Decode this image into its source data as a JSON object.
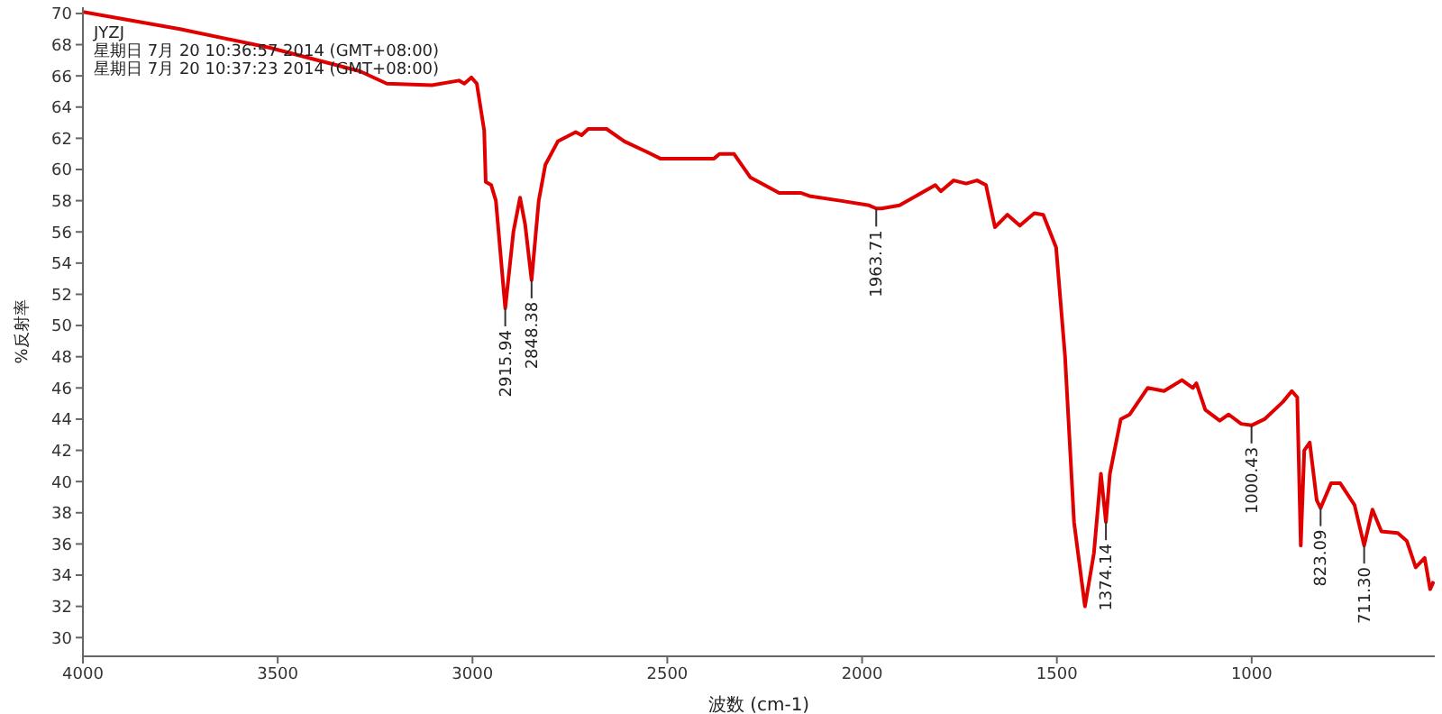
{
  "chart_data": {
    "type": "line",
    "xlabel": "波数 (cm-1)",
    "ylabel": "%反射率",
    "xlim": [
      4000,
      530
    ],
    "xticks": [
      4000,
      3500,
      3000,
      2500,
      2000,
      1500,
      1000
    ],
    "ylim": [
      28.8,
      70.4
    ],
    "yticks": [
      30,
      32,
      34,
      36,
      38,
      40,
      42,
      44,
      46,
      48,
      50,
      52,
      54,
      56,
      58,
      60,
      62,
      64,
      66,
      68,
      70
    ],
    "grid": false,
    "legend": false,
    "marker": "none",
    "line_style": "solid",
    "series": [
      {
        "color": "#e00000",
        "x": [
          4000,
          3751,
          3520,
          3289,
          3220,
          3104,
          3035,
          3021,
          3003,
          2989,
          2970,
          2966,
          2952,
          2940,
          2915.94,
          2895,
          2878,
          2865,
          2848.38,
          2830,
          2813,
          2781,
          2735,
          2720,
          2703,
          2656,
          2610,
          2550,
          2518,
          2426,
          2380,
          2366,
          2329,
          2287,
          2213,
          2158,
          2135,
          2056,
          1982,
          1963.71,
          1950,
          1904,
          1812,
          1798,
          1765,
          1733,
          1705,
          1682,
          1659,
          1627,
          1595,
          1558,
          1535,
          1502,
          1479,
          1456,
          1428,
          1405,
          1387,
          1374.14,
          1364,
          1336,
          1313,
          1267,
          1225,
          1179,
          1151,
          1142,
          1119,
          1082,
          1059,
          1027,
          1000.43,
          967,
          920,
          897,
          883,
          874,
          865,
          851,
          833,
          823.09,
          796,
          773,
          736,
          711.3,
          690,
          667,
          625,
          602,
          579,
          556,
          542,
          533
        ],
        "values": [
          70.1,
          69.0,
          67.8,
          66.3,
          65.5,
          65.4,
          65.7,
          65.5,
          65.9,
          65.5,
          62.5,
          59.2,
          59.0,
          58.0,
          51.1,
          56.0,
          58.2,
          56.5,
          52.9,
          58.0,
          60.3,
          61.8,
          62.4,
          62.2,
          62.6,
          62.6,
          61.8,
          61.1,
          60.7,
          60.7,
          60.7,
          61.0,
          61.0,
          59.5,
          58.5,
          58.5,
          58.3,
          58.0,
          57.7,
          57.5,
          57.5,
          57.7,
          59.0,
          58.6,
          59.3,
          59.1,
          59.3,
          59.0,
          56.3,
          57.1,
          56.4,
          57.2,
          57.1,
          55.0,
          48.0,
          37.4,
          32.0,
          35.4,
          40.5,
          37.4,
          40.5,
          44.0,
          44.3,
          46.0,
          45.8,
          46.5,
          46.0,
          46.3,
          44.6,
          43.9,
          44.3,
          43.7,
          43.6,
          44.0,
          45.1,
          45.8,
          45.4,
          35.9,
          42.0,
          42.5,
          38.8,
          38.3,
          39.9,
          39.9,
          38.5,
          35.9,
          38.2,
          36.8,
          36.7,
          36.2,
          34.5,
          35.1,
          33.1,
          33.6
        ]
      }
    ],
    "annotations": [
      "JYZJ",
      "星期日 7月 20 10:36:57 2014 (GMT+08:00)",
      "星期日 7月 20 10:37:23 2014 (GMT+08:00)",
      {
        "text": "2915.94",
        "x": 2915.94,
        "y": 51.1
      },
      {
        "text": "2848.38",
        "x": 2848.38,
        "y": 52.9
      },
      {
        "text": "1963.71",
        "x": 1963.71,
        "y": 57.5
      },
      {
        "text": "1374.14",
        "x": 1374.14,
        "y": 37.4
      },
      {
        "text": "1000.43",
        "x": 1000.43,
        "y": 43.6
      },
      {
        "text": "823.09",
        "x": 823.09,
        "y": 38.3
      },
      {
        "text": "711.30",
        "x": 711.3,
        "y": 35.9
      }
    ]
  }
}
